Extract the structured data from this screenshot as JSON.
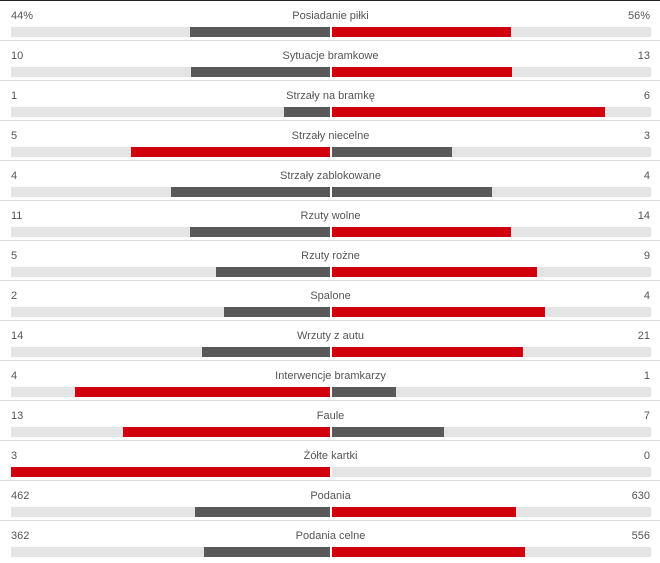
{
  "colors": {
    "leader": "#d0000f",
    "trailer": "#595959",
    "track": "#e4e4e4"
  },
  "stats": [
    {
      "name": "Posiadanie piłki",
      "home": "44%",
      "away": "56%",
      "home_value": 44,
      "away_value": 56
    },
    {
      "name": "Sytuacje bramkowe",
      "home": "10",
      "away": "13",
      "home_value": 10,
      "away_value": 13
    },
    {
      "name": "Strzały na bramkę",
      "home": "1",
      "away": "6",
      "home_value": 1,
      "away_value": 6
    },
    {
      "name": "Strzały niecelne",
      "home": "5",
      "away": "3",
      "home_value": 5,
      "away_value": 3
    },
    {
      "name": "Strzały zablokowane",
      "home": "4",
      "away": "4",
      "home_value": 4,
      "away_value": 4
    },
    {
      "name": "Rzuty wolne",
      "home": "11",
      "away": "14",
      "home_value": 11,
      "away_value": 14
    },
    {
      "name": "Rzuty rożne",
      "home": "5",
      "away": "9",
      "home_value": 5,
      "away_value": 9
    },
    {
      "name": "Spalone",
      "home": "2",
      "away": "4",
      "home_value": 2,
      "away_value": 4
    },
    {
      "name": "Wrzuty z autu",
      "home": "14",
      "away": "21",
      "home_value": 14,
      "away_value": 21
    },
    {
      "name": "Interwencje bramkarzy",
      "home": "4",
      "away": "1",
      "home_value": 4,
      "away_value": 1
    },
    {
      "name": "Faule",
      "home": "13",
      "away": "7",
      "home_value": 13,
      "away_value": 7
    },
    {
      "name": "Żółte kartki",
      "home": "3",
      "away": "0",
      "home_value": 3,
      "away_value": 0
    },
    {
      "name": "Podania",
      "home": "462",
      "away": "630",
      "home_value": 462,
      "away_value": 630
    },
    {
      "name": "Podania celne",
      "home": "362",
      "away": "556",
      "home_value": 362,
      "away_value": 556
    }
  ]
}
